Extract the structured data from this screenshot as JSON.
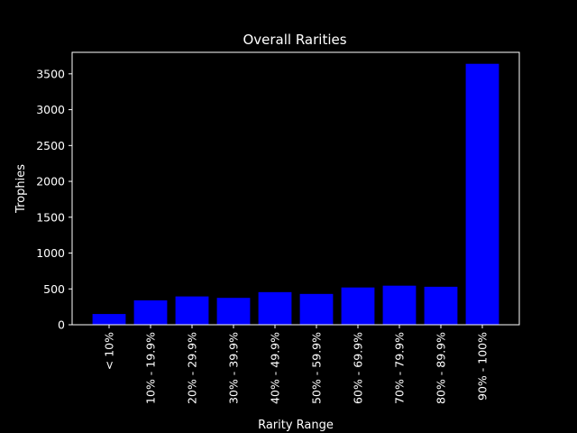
{
  "chart_data": {
    "type": "bar",
    "title": "Overall Rarities",
    "xlabel": "Rarity Range",
    "ylabel": "Trophies",
    "categories": [
      "< 10%",
      "10% - 19.9%",
      "20% - 29.9%",
      "30% - 39.9%",
      "40% - 49.9%",
      "50% - 59.9%",
      "60% - 69.9%",
      "70% - 79.9%",
      "80% - 89.9%",
      "90% - 100%"
    ],
    "values": [
      150,
      340,
      395,
      375,
      455,
      430,
      520,
      545,
      530,
      3640
    ],
    "ylim": [
      0,
      3800
    ],
    "yticks": [
      0,
      500,
      1000,
      1500,
      2000,
      2500,
      3000,
      3500
    ],
    "grid": false,
    "bar_color": "#0000ff",
    "background_color": "#000000",
    "axis_color": "#ffffff"
  }
}
